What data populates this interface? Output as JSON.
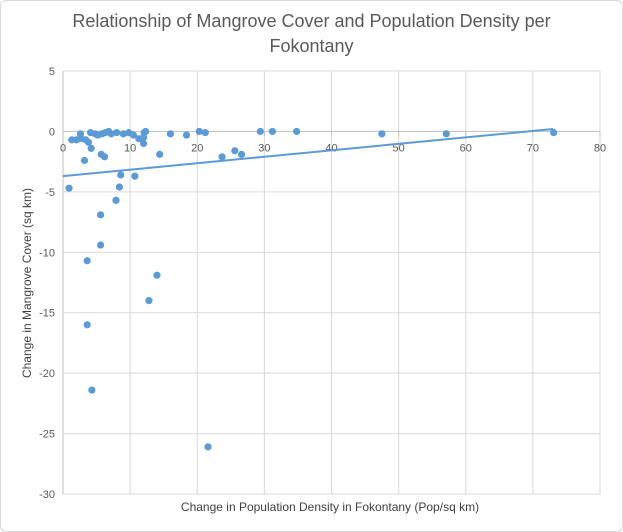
{
  "chart_data": {
    "type": "scatter",
    "title": "Relationship of Mangrove Cover and Population Density per Fokontany",
    "xlabel": "Change in Population Density in Fokontany (Pop/sq km)",
    "ylabel": "Change in Mangrove Cover (sq km)",
    "xlim": [
      0,
      80
    ],
    "ylim": [
      -30,
      5
    ],
    "x_ticks": [
      "0",
      "10",
      "20",
      "30",
      "40",
      "50",
      "60",
      "70",
      "80"
    ],
    "y_ticks": [
      "5",
      "0",
      "-5",
      "-10",
      "-15",
      "-20",
      "-25",
      "-30"
    ],
    "grid": true,
    "legend": "none",
    "marker_color": "#5b9bd5",
    "trendline": {
      "type": "linear",
      "x": [
        0,
        73
      ],
      "y": [
        -3.7,
        0.2
      ]
    },
    "points": [
      {
        "x": 0.9,
        "y": -4.7
      },
      {
        "x": 1.3,
        "y": -0.7
      },
      {
        "x": 2.0,
        "y": -0.7
      },
      {
        "x": 2.6,
        "y": -0.2
      },
      {
        "x": 2.7,
        "y": -0.6
      },
      {
        "x": 3.2,
        "y": -2.4
      },
      {
        "x": 3.4,
        "y": -0.7
      },
      {
        "x": 3.6,
        "y": -10.7
      },
      {
        "x": 3.6,
        "y": -16.0
      },
      {
        "x": 3.8,
        "y": -0.9
      },
      {
        "x": 4.1,
        "y": -0.1
      },
      {
        "x": 4.2,
        "y": -1.4
      },
      {
        "x": 4.3,
        "y": -21.4
      },
      {
        "x": 4.8,
        "y": -0.2
      },
      {
        "x": 5.2,
        "y": -0.3
      },
      {
        "x": 5.6,
        "y": -9.4
      },
      {
        "x": 5.6,
        "y": -6.9
      },
      {
        "x": 5.7,
        "y": -1.9
      },
      {
        "x": 5.8,
        "y": -0.2
      },
      {
        "x": 6.2,
        "y": -2.1
      },
      {
        "x": 6.3,
        "y": -0.1
      },
      {
        "x": 6.8,
        "y": 0.0
      },
      {
        "x": 7.2,
        "y": -0.2
      },
      {
        "x": 7.9,
        "y": -5.7
      },
      {
        "x": 8.0,
        "y": -0.1
      },
      {
        "x": 8.4,
        "y": -4.6
      },
      {
        "x": 8.6,
        "y": -3.6
      },
      {
        "x": 9.0,
        "y": -0.2
      },
      {
        "x": 9.8,
        "y": -0.1
      },
      {
        "x": 10.5,
        "y": -0.3
      },
      {
        "x": 10.7,
        "y": -3.7
      },
      {
        "x": 11.3,
        "y": -0.6
      },
      {
        "x": 12.0,
        "y": -0.5
      },
      {
        "x": 12.0,
        "y": -1.0
      },
      {
        "x": 12.1,
        "y": -0.1
      },
      {
        "x": 12.3,
        "y": 0.0
      },
      {
        "x": 12.8,
        "y": -14.0
      },
      {
        "x": 14.0,
        "y": -11.9
      },
      {
        "x": 14.4,
        "y": -1.9
      },
      {
        "x": 16.0,
        "y": -0.2
      },
      {
        "x": 18.4,
        "y": -0.3
      },
      {
        "x": 20.3,
        "y": 0.0
      },
      {
        "x": 21.2,
        "y": -0.1
      },
      {
        "x": 21.6,
        "y": -26.1
      },
      {
        "x": 23.7,
        "y": -2.1
      },
      {
        "x": 25.6,
        "y": -1.6
      },
      {
        "x": 26.6,
        "y": -1.9
      },
      {
        "x": 29.4,
        "y": 0.0
      },
      {
        "x": 31.2,
        "y": 0.0
      },
      {
        "x": 34.8,
        "y": 0.0
      },
      {
        "x": 47.5,
        "y": -0.2
      },
      {
        "x": 57.1,
        "y": -0.2
      },
      {
        "x": 73.1,
        "y": -0.1
      }
    ]
  }
}
